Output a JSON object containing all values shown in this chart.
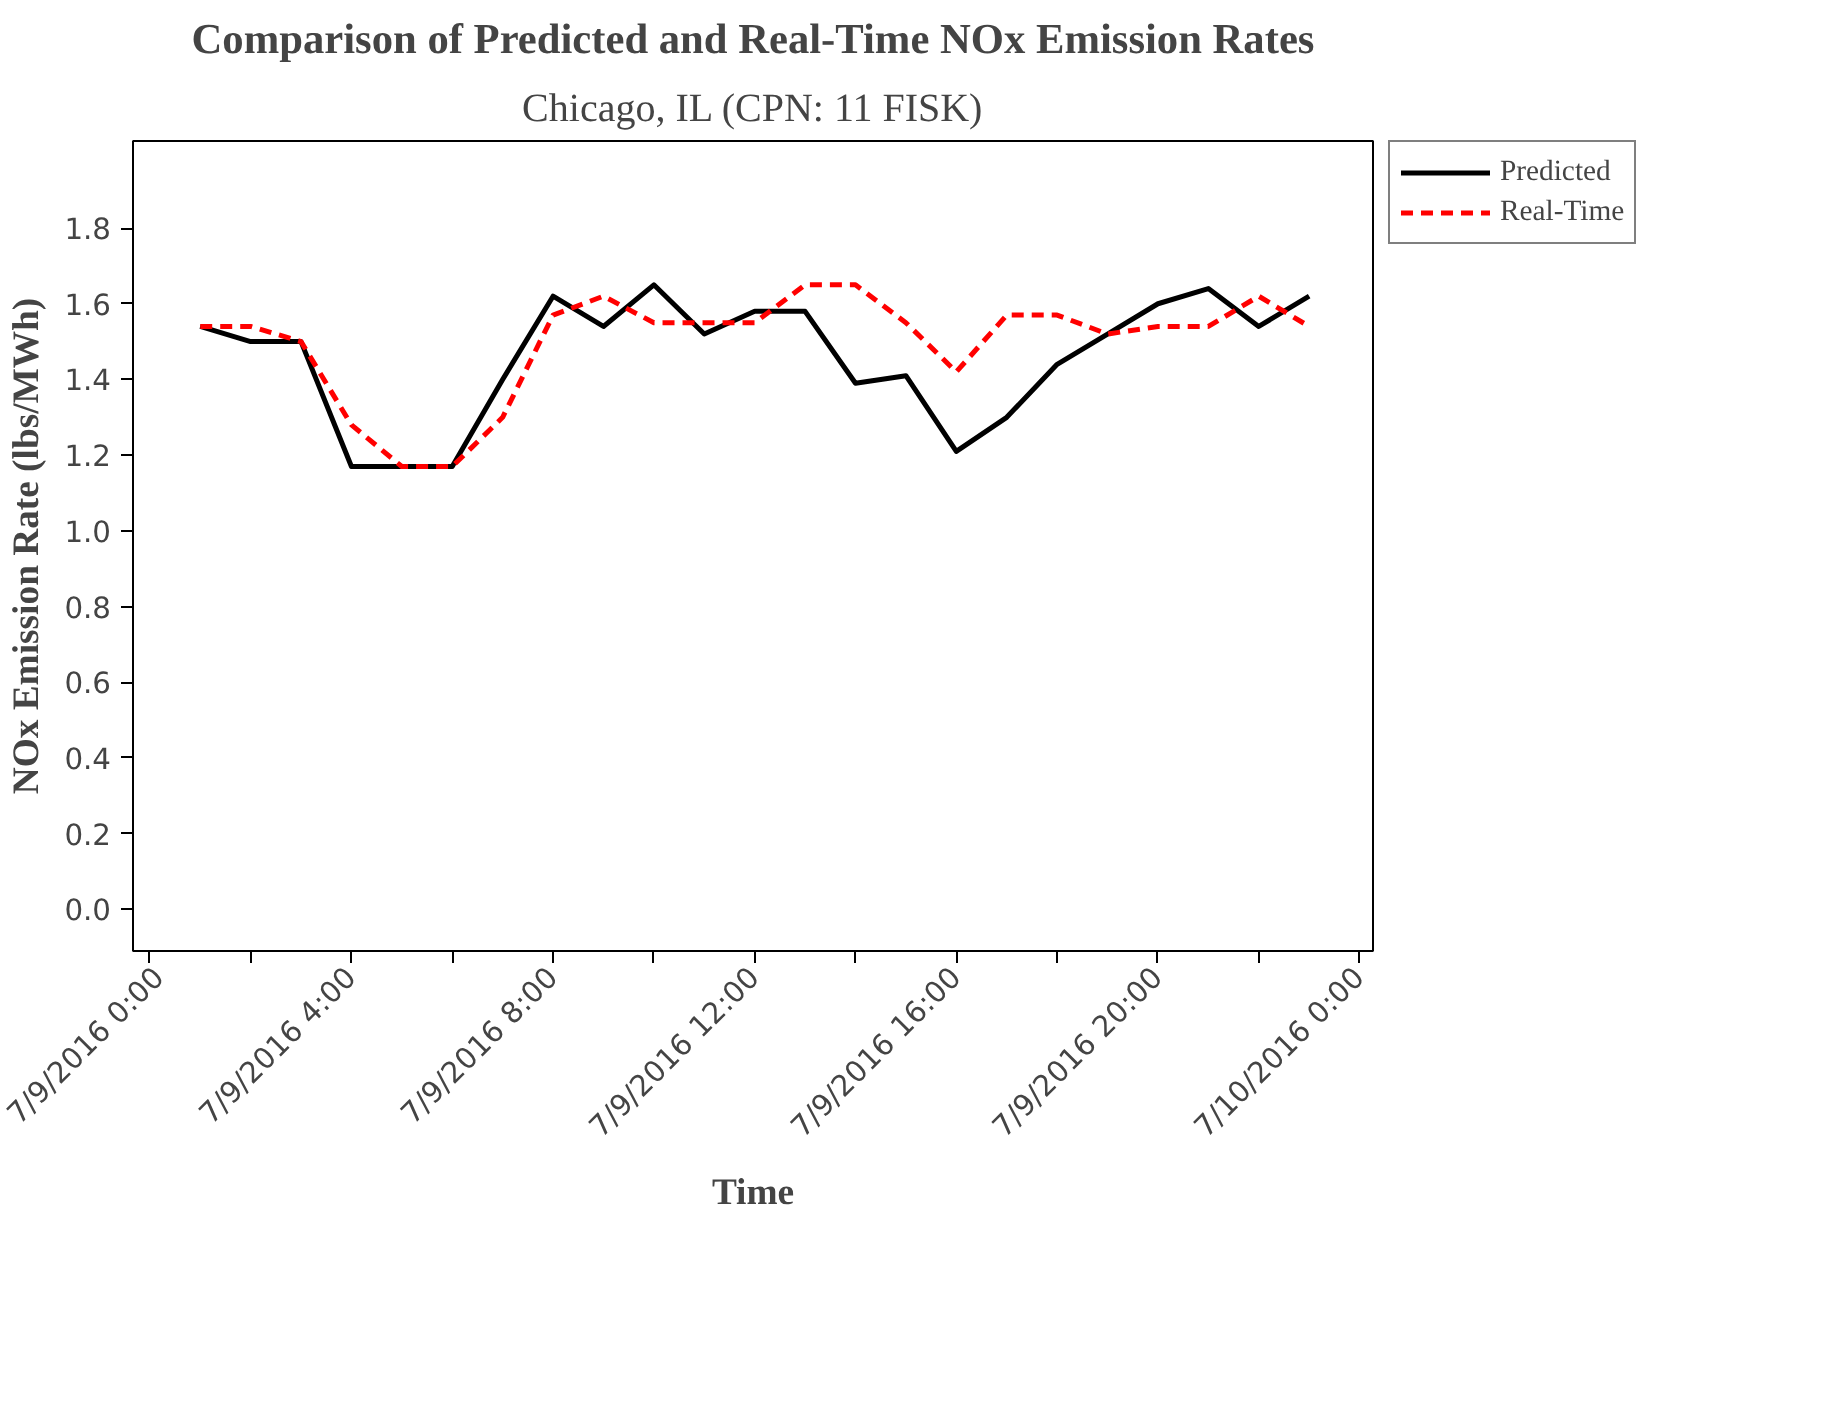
{
  "chart_data": {
    "type": "line",
    "title": "Comparison of Predicted and Real-Time NOx Emission Rates",
    "subtitle": "Chicago, IL (CPN: 11 FISK)",
    "xlabel": "Time",
    "ylabel": "NOx Emission Rate (lbs/MWh)",
    "x": [
      "2016-07-09T01:00",
      "2016-07-09T02:00",
      "2016-07-09T03:00",
      "2016-07-09T04:00",
      "2016-07-09T05:00",
      "2016-07-09T06:00",
      "2016-07-09T07:00",
      "2016-07-09T08:00",
      "2016-07-09T09:00",
      "2016-07-09T10:00",
      "2016-07-09T11:00",
      "2016-07-09T12:00",
      "2016-07-09T13:00",
      "2016-07-09T14:00",
      "2016-07-09T15:00",
      "2016-07-09T16:00",
      "2016-07-09T17:00",
      "2016-07-09T18:00",
      "2016-07-09T19:00",
      "2016-07-09T20:00",
      "2016-07-09T21:00",
      "2016-07-09T22:00",
      "2016-07-09T23:00"
    ],
    "series": [
      {
        "name": "Predicted",
        "color": "#000000",
        "line_style": "solid",
        "values": [
          1.54,
          1.5,
          1.5,
          1.17,
          1.17,
          1.17,
          1.4,
          1.62,
          1.54,
          1.65,
          1.52,
          1.58,
          1.58,
          1.39,
          1.41,
          1.21,
          1.3,
          1.44,
          1.52,
          1.6,
          1.64,
          1.54,
          1.62
        ]
      },
      {
        "name": "Real-Time",
        "color": "#ff0000",
        "line_style": "dashed",
        "values": [
          1.54,
          1.54,
          1.5,
          1.28,
          1.17,
          1.17,
          1.3,
          1.57,
          1.62,
          1.55,
          1.55,
          1.55,
          1.65,
          1.65,
          1.55,
          1.42,
          1.57,
          1.57,
          1.52,
          1.54,
          1.54,
          1.62,
          1.54
        ]
      }
    ],
    "xlim": [
      "2016-07-08T23:40",
      "2016-07-10T00:16"
    ],
    "ylim": [
      -0.11,
      2.03
    ],
    "xticks": [
      {
        "value": "2016-07-09T00:00",
        "label": "7/9/2016 0:00"
      },
      {
        "value": "2016-07-09T02:00",
        "label": null
      },
      {
        "value": "2016-07-09T04:00",
        "label": "7/9/2016 4:00"
      },
      {
        "value": "2016-07-09T06:00",
        "label": null
      },
      {
        "value": "2016-07-09T08:00",
        "label": "7/9/2016 8:00"
      },
      {
        "value": "2016-07-09T10:00",
        "label": null
      },
      {
        "value": "2016-07-09T12:00",
        "label": "7/9/2016 12:00"
      },
      {
        "value": "2016-07-09T14:00",
        "label": null
      },
      {
        "value": "2016-07-09T16:00",
        "label": "7/9/2016 16:00"
      },
      {
        "value": "2016-07-09T18:00",
        "label": null
      },
      {
        "value": "2016-07-09T20:00",
        "label": "7/9/2016 20:00"
      },
      {
        "value": "2016-07-09T22:00",
        "label": null
      },
      {
        "value": "2016-07-10T00:00",
        "label": "7/10/2016 0:00"
      }
    ],
    "yticks": [
      {
        "value": 0,
        "label": "0.0"
      },
      {
        "value": 0.2,
        "label": "0.2"
      },
      {
        "value": 0.4,
        "label": "0.4"
      },
      {
        "value": 0.6,
        "label": "0.6"
      },
      {
        "value": 0.8,
        "label": "0.8"
      },
      {
        "value": 1.0,
        "label": "1.0"
      },
      {
        "value": 1.2,
        "label": "1.2"
      },
      {
        "value": 1.4,
        "label": "1.4"
      },
      {
        "value": 1.6,
        "label": "1.6"
      },
      {
        "value": 1.8,
        "label": "1.8"
      }
    ],
    "grid": false,
    "legend": "right",
    "marker": "none"
  }
}
